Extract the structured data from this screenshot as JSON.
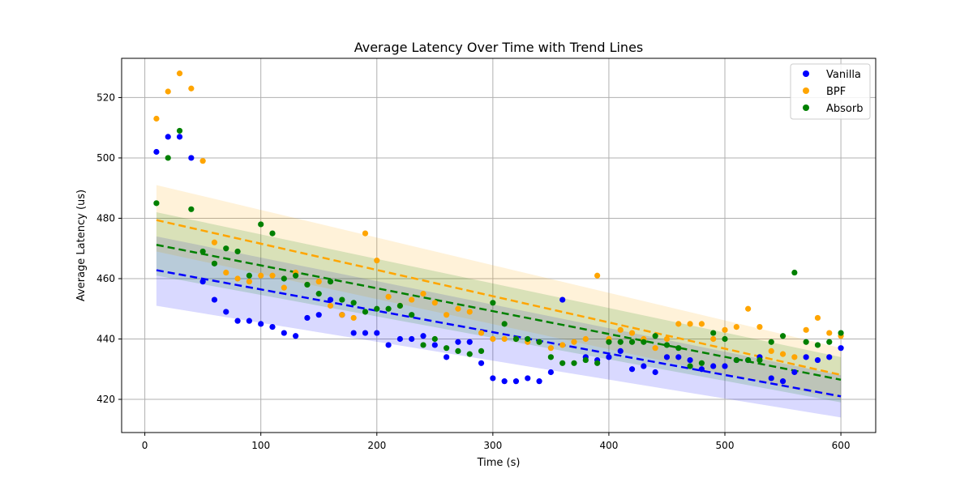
{
  "chart_data": {
    "type": "scatter",
    "title": "Average Latency Over Time with Trend Lines",
    "xlabel": "Time (s)",
    "ylabel": "Average Latency (us)",
    "xlim": [
      -20,
      630
    ],
    "ylim": [
      409,
      533
    ],
    "xticks": [
      0,
      100,
      200,
      300,
      400,
      500,
      600
    ],
    "yticks": [
      420,
      440,
      460,
      480,
      500,
      520
    ],
    "grid": true,
    "legend_position": "top-right",
    "x": [
      10,
      20,
      30,
      40,
      50,
      60,
      70,
      80,
      90,
      100,
      110,
      120,
      130,
      140,
      150,
      160,
      170,
      180,
      190,
      200,
      210,
      220,
      230,
      240,
      250,
      260,
      270,
      280,
      290,
      300,
      310,
      320,
      330,
      340,
      350,
      360,
      370,
      380,
      390,
      400,
      410,
      420,
      430,
      440,
      450,
      460,
      470,
      480,
      490,
      500,
      510,
      520,
      530,
      540,
      550,
      560,
      570,
      580,
      590,
      600
    ],
    "series": [
      {
        "name": "Vanilla",
        "color": "#0000ff",
        "values": [
          502,
          507,
          507,
          500,
          459,
          453,
          449,
          446,
          446,
          445,
          444,
          442,
          441,
          447,
          448,
          453,
          448,
          442,
          442,
          442,
          438,
          440,
          440,
          441,
          438,
          434,
          439,
          439,
          432,
          427,
          426,
          426,
          427,
          426,
          429,
          453,
          null,
          434,
          433,
          434,
          436,
          430,
          431,
          429,
          434,
          434,
          433,
          430,
          431,
          431,
          433,
          433,
          434,
          427,
          426,
          429,
          434,
          433,
          434,
          437
        ],
        "trend": {
          "start": 462.8,
          "end": 421.0
        },
        "band": {
          "upper_start": 474.0,
          "upper_end": 428.0,
          "lower_start": 451.0,
          "lower_end": 414.0
        }
      },
      {
        "name": "BPF",
        "color": "#ffa500",
        "values": [
          513,
          522,
          528,
          523,
          499,
          472,
          462,
          460,
          459,
          461,
          461,
          457,
          462,
          458,
          459,
          451,
          448,
          447,
          475,
          466,
          454,
          451,
          453,
          455,
          452,
          448,
          450,
          449,
          442,
          440,
          440,
          440,
          439,
          439,
          437,
          438,
          439,
          440,
          461,
          440,
          443,
          442,
          440,
          437,
          440,
          445,
          445,
          445,
          440,
          443,
          444,
          450,
          444,
          436,
          435,
          434,
          443,
          447,
          442,
          441
        ],
        "trend": {
          "start": 479.4,
          "end": 428.1
        },
        "band": {
          "upper_start": 491.0,
          "upper_end": 437.0,
          "lower_start": 469.0,
          "lower_end": 420.0
        }
      },
      {
        "name": "Absorb",
        "color": "#008000",
        "values": [
          485,
          500,
          509,
          483,
          469,
          465,
          470,
          469,
          461,
          478,
          475,
          460,
          461,
          458,
          455,
          459,
          453,
          452,
          449,
          450,
          450,
          451,
          448,
          438,
          440,
          437,
          436,
          435,
          436,
          452,
          445,
          440,
          440,
          439,
          434,
          432,
          432,
          433,
          432,
          439,
          439,
          439,
          439,
          441,
          438,
          437,
          431,
          432,
          442,
          440,
          433,
          433,
          433,
          439,
          441,
          462,
          439,
          438,
          439,
          442
        ],
        "trend": {
          "start": 471.2,
          "end": 426.5
        },
        "band": {
          "upper_start": 482.0,
          "upper_end": 434.0,
          "lower_start": 461.0,
          "lower_end": 419.0
        }
      }
    ]
  }
}
